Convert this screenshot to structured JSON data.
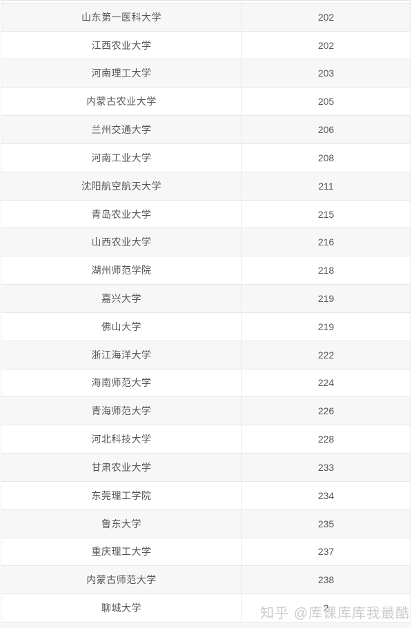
{
  "table": {
    "description_columns": [
      "university-name",
      "score"
    ],
    "rows": [
      {
        "name": "山东第一医科大学",
        "value": "202"
      },
      {
        "name": "江西农业大学",
        "value": "202"
      },
      {
        "name": "河南理工大学",
        "value": "203"
      },
      {
        "name": "内蒙古农业大学",
        "value": "205"
      },
      {
        "name": "兰州交通大学",
        "value": "206"
      },
      {
        "name": "河南工业大学",
        "value": "208"
      },
      {
        "name": "沈阳航空航天大学",
        "value": "211"
      },
      {
        "name": "青岛农业大学",
        "value": "215"
      },
      {
        "name": "山西农业大学",
        "value": "216"
      },
      {
        "name": "湖州师范学院",
        "value": "218"
      },
      {
        "name": "嘉兴大学",
        "value": "219"
      },
      {
        "name": "佛山大学",
        "value": "219"
      },
      {
        "name": "浙江海洋大学",
        "value": "222"
      },
      {
        "name": "海南师范大学",
        "value": "224"
      },
      {
        "name": "青海师范大学",
        "value": "226"
      },
      {
        "name": "河北科技大学",
        "value": "228"
      },
      {
        "name": "甘肃农业大学",
        "value": "233"
      },
      {
        "name": "东莞理工学院",
        "value": "234"
      },
      {
        "name": "鲁东大学",
        "value": "235"
      },
      {
        "name": "重庆理工大学",
        "value": "237"
      },
      {
        "name": "内蒙古师范大学",
        "value": "238"
      },
      {
        "name": "聊城大学",
        "value": "2"
      }
    ]
  },
  "watermark": {
    "text": "知乎 @库课库库我最酷"
  },
  "colors": {
    "row_alt_background": "#f7f7f7",
    "row_background": "#ffffff",
    "border": "#e7e7e7",
    "text": "#555555",
    "watermark": "#cbcbcb"
  }
}
